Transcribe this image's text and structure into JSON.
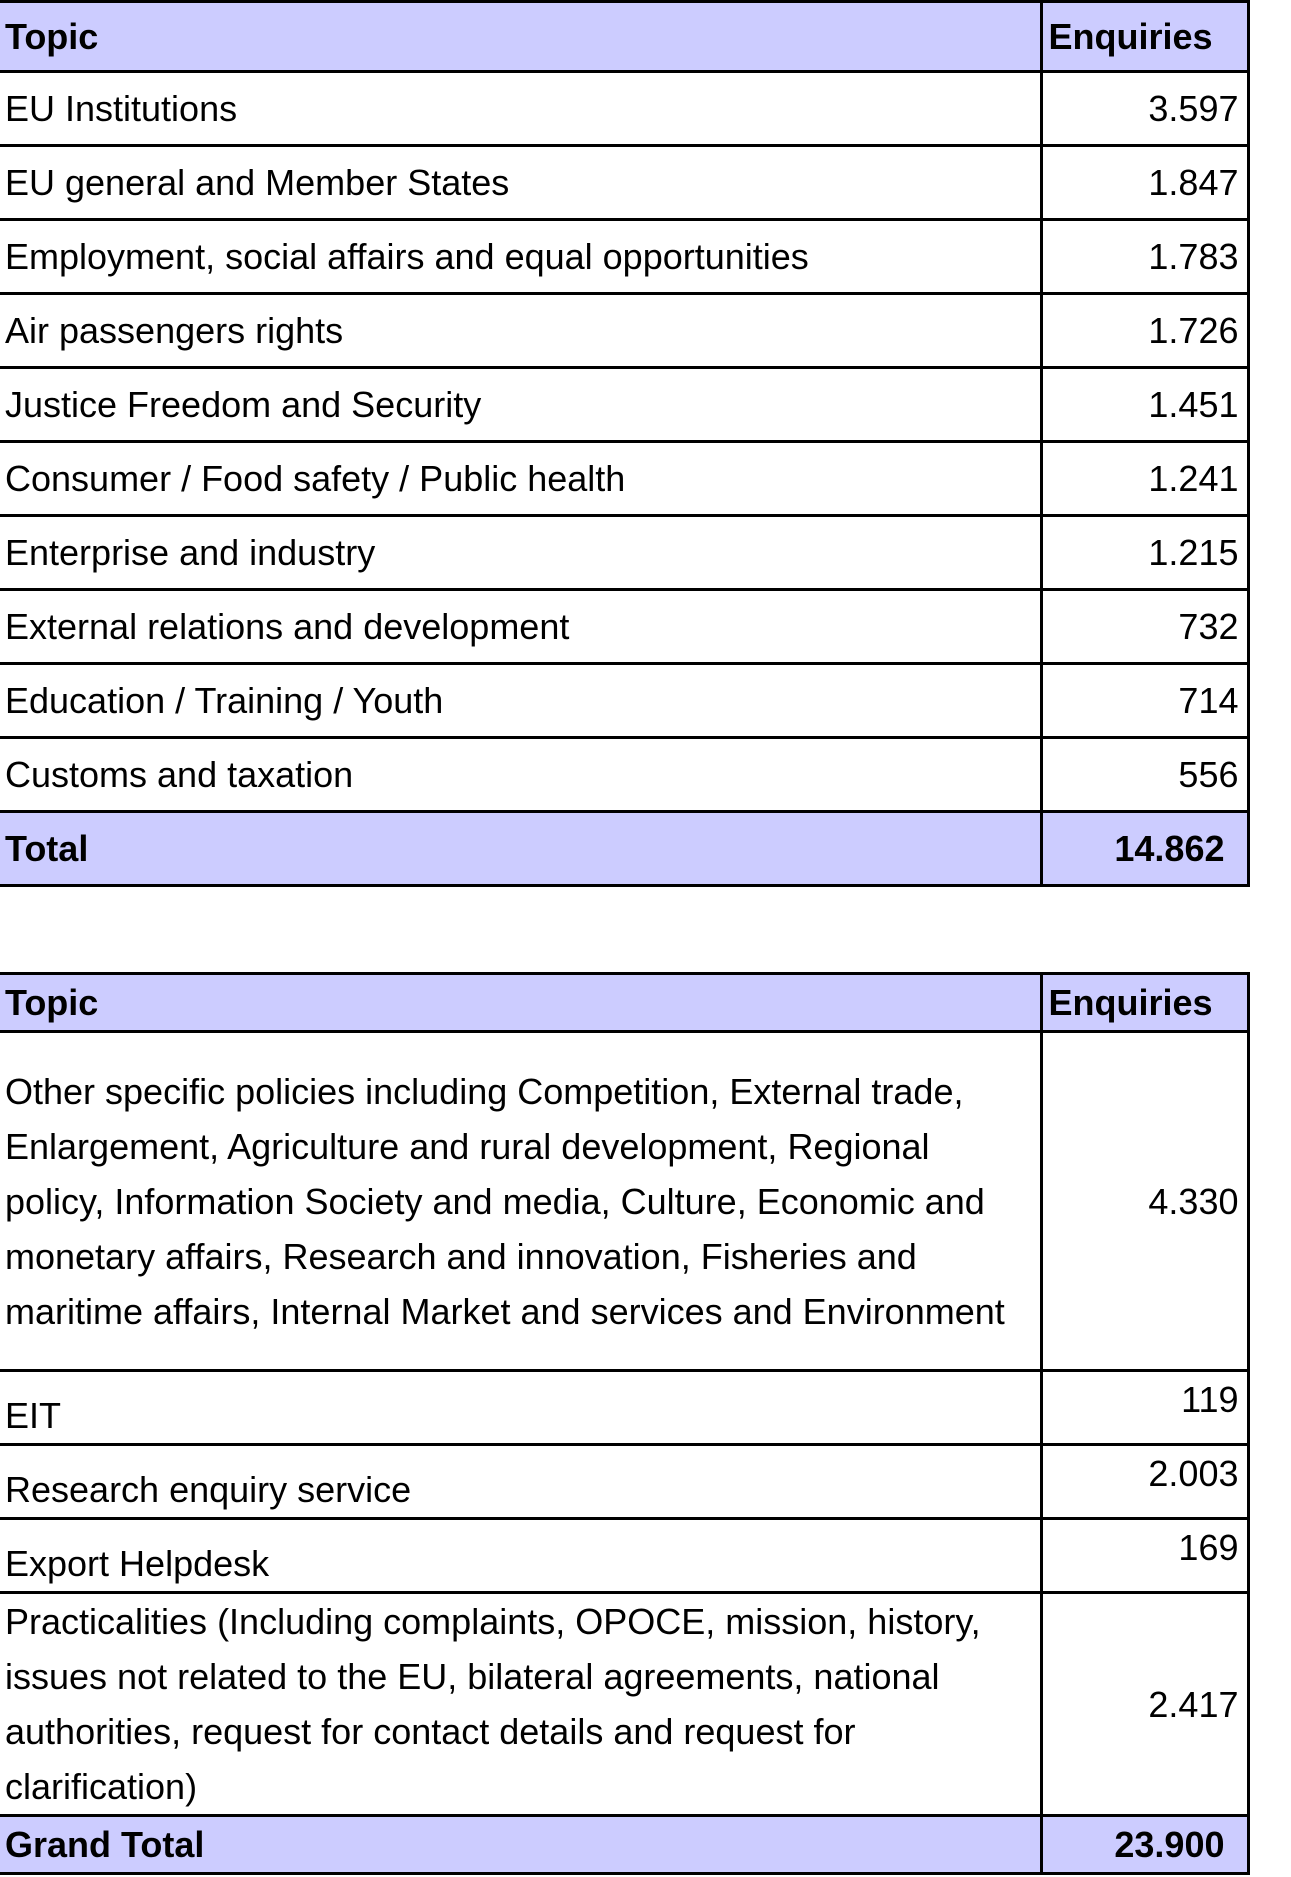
{
  "table_1": {
    "header": {
      "topic": "Topic",
      "enquiries": "Enquiries"
    },
    "rows": [
      {
        "topic": "EU Institutions",
        "enquiries": "3.597"
      },
      {
        "topic": "EU general and Member States",
        "enquiries": "1.847"
      },
      {
        "topic": "Employment, social affairs and equal opportunities",
        "enquiries": "1.783"
      },
      {
        "topic": "Air passengers rights",
        "enquiries": "1.726"
      },
      {
        "topic": "Justice Freedom and Security",
        "enquiries": "1.451"
      },
      {
        "topic": "Consumer / Food safety / Public health",
        "enquiries": "1.241"
      },
      {
        "topic": "Enterprise and industry",
        "enquiries": "1.215"
      },
      {
        "topic": "External relations and development",
        "enquiries": "732"
      },
      {
        "topic": "Education / Training / Youth",
        "enquiries": "714"
      },
      {
        "topic": "Customs and taxation",
        "enquiries": "556"
      }
    ],
    "total": {
      "label": "Total",
      "value": "14.862"
    }
  },
  "table_2": {
    "header": {
      "topic": "Topic",
      "enquiries": "Enquiries"
    },
    "rows": [
      {
        "topic": "Other specific policies including Competition, External trade, Enlargement, Agriculture and rural development, Regional policy, Information Society and media, Culture, Economic and monetary affairs, Research and innovation, Fisheries and maritime affairs, Internal Market and services and Environment",
        "enquiries": "4.330"
      },
      {
        "topic": "EIT",
        "enquiries": "119"
      },
      {
        "topic": "Research enquiry service",
        "enquiries": "2.003"
      },
      {
        "topic": "Export Helpdesk",
        "enquiries": "169"
      },
      {
        "topic": "Practicalities (Including complaints, OPOCE, mission, history, issues not related to the EU, bilateral agreements, national authorities, request for contact details and request for clarification)",
        "enquiries": "2.417"
      }
    ],
    "total": {
      "label": "Grand Total",
      "value": "23.900"
    }
  },
  "colors": {
    "header_background": "#ccccff",
    "border": "#000000"
  }
}
